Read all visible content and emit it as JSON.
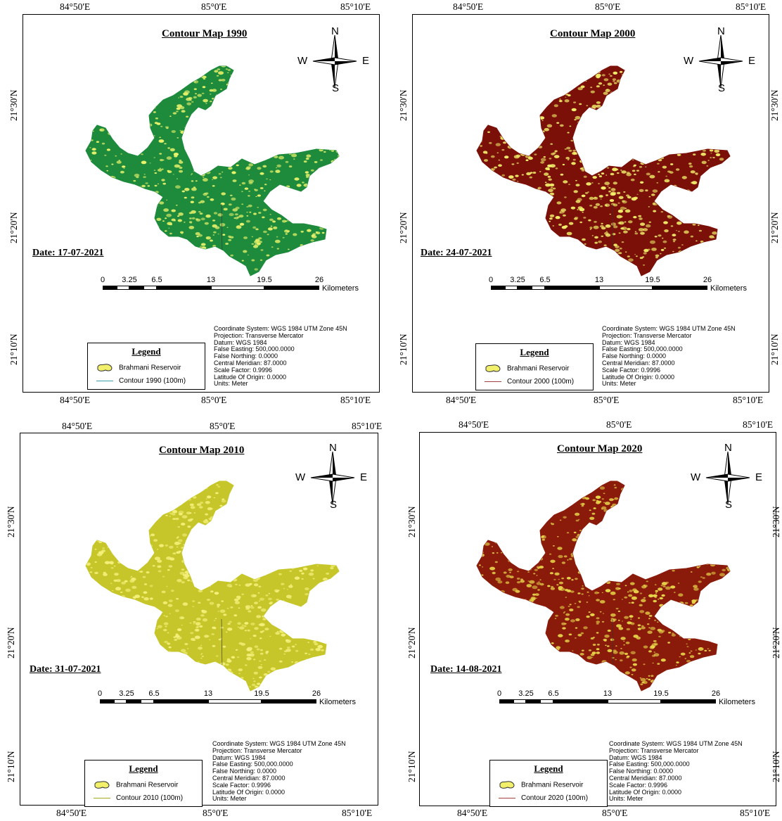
{
  "panels": [
    {
      "title": "Contour Map 1990",
      "date": "Date: 17-07-2021",
      "base_color": "#1d8a3c",
      "speckle_color": "#e8f26a",
      "contour_color": "#3ca0b0",
      "legend": {
        "title": "Legend",
        "reservoir": "Brahmani Reservoir",
        "contour": "Contour 1990 (100m)"
      },
      "top_lon": [
        "84°50'E",
        "85°0'E",
        "85°10'E"
      ],
      "bottom_lon": [
        "84°50'E",
        "85°0'E",
        "85°10'E"
      ]
    },
    {
      "title": "Contour Map 2000",
      "date": "Date: 24-07-2021",
      "base_color": "#7a1008",
      "speckle_color": "#f2f06a",
      "contour_color": "#a04040",
      "legend": {
        "title": "Legend",
        "reservoir": "Brahmani Reservoir",
        "contour": "Contour 2000 (100m)"
      },
      "top_lon": [
        "84°50'E",
        "85°0'E",
        "85°10'E"
      ],
      "bottom_lon": [
        "84°50'E",
        "85°0'E",
        "85°10'E"
      ]
    },
    {
      "title": "Contour Map 2010",
      "date": "Date: 31-07-2021",
      "base_color": "#c6c62a",
      "speckle_color": "#f4f07a",
      "contour_color": "#a8a820",
      "legend": {
        "title": "Legend",
        "reservoir": "Brahmani Reservoir",
        "contour": "Contour 2010 (100m)"
      },
      "top_lon": [
        "84°50'E",
        "85°0'E",
        "85°10'E"
      ],
      "bottom_lon": [
        "84°50'E",
        "85°0'E",
        "85°10'E"
      ]
    },
    {
      "title": "Contour Map 2020",
      "date": "Date: 14-08-2021",
      "base_color": "#8a1a0a",
      "speckle_color": "#e8d84a",
      "contour_color": "#a04040",
      "legend": {
        "title": "Legend",
        "reservoir": "Brahmani Reservoir",
        "contour": "Contour 2020 (100m)"
      },
      "top_lon": [
        "84°50'E",
        "85°0'E",
        "85°10'E"
      ],
      "bottom_lon": [
        "84°50'E",
        "85°0'E",
        "85°10'E"
      ]
    }
  ],
  "lat_labels": [
    "21°30'N",
    "21°20'N",
    "21°10'N"
  ],
  "compass": {
    "n": "N",
    "s": "S",
    "e": "E",
    "w": "W"
  },
  "scale": {
    "ticks": [
      "0",
      "3.25",
      "6.5",
      "13",
      "19.5",
      "26"
    ],
    "unit": "Kilometers"
  },
  "info": [
    "Coordinate System: WGS 1984 UTM Zone 45N",
    "Projection: Transverse Mercator",
    "Datum: WGS 1984",
    "False Easting: 500,000.0000",
    "False Northing: 0.0000",
    "Central Meridian: 87.0000",
    "Scale Factor: 0.9996",
    "Latitude Of Origin: 0.0000",
    "Units: Meter"
  ]
}
